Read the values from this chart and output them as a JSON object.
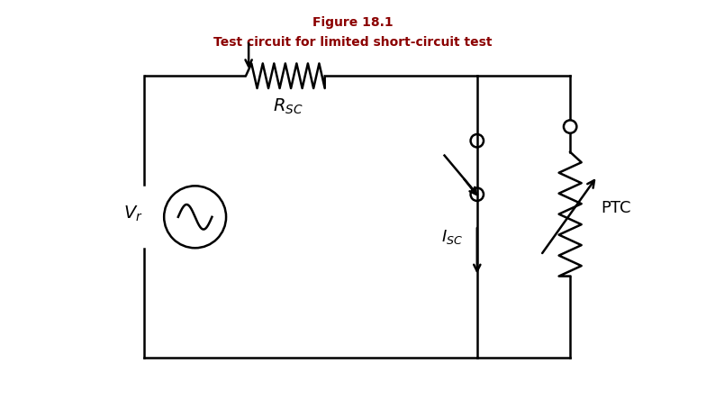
{
  "title_line1": "Figure 18.1",
  "title_line2": "Test circuit for limited short-circuit test",
  "title_color": "#8B0000",
  "background_color": "#ffffff",
  "line_color": "#000000",
  "line_width": 1.8,
  "figsize": [
    7.84,
    4.44
  ],
  "dpi": 100
}
